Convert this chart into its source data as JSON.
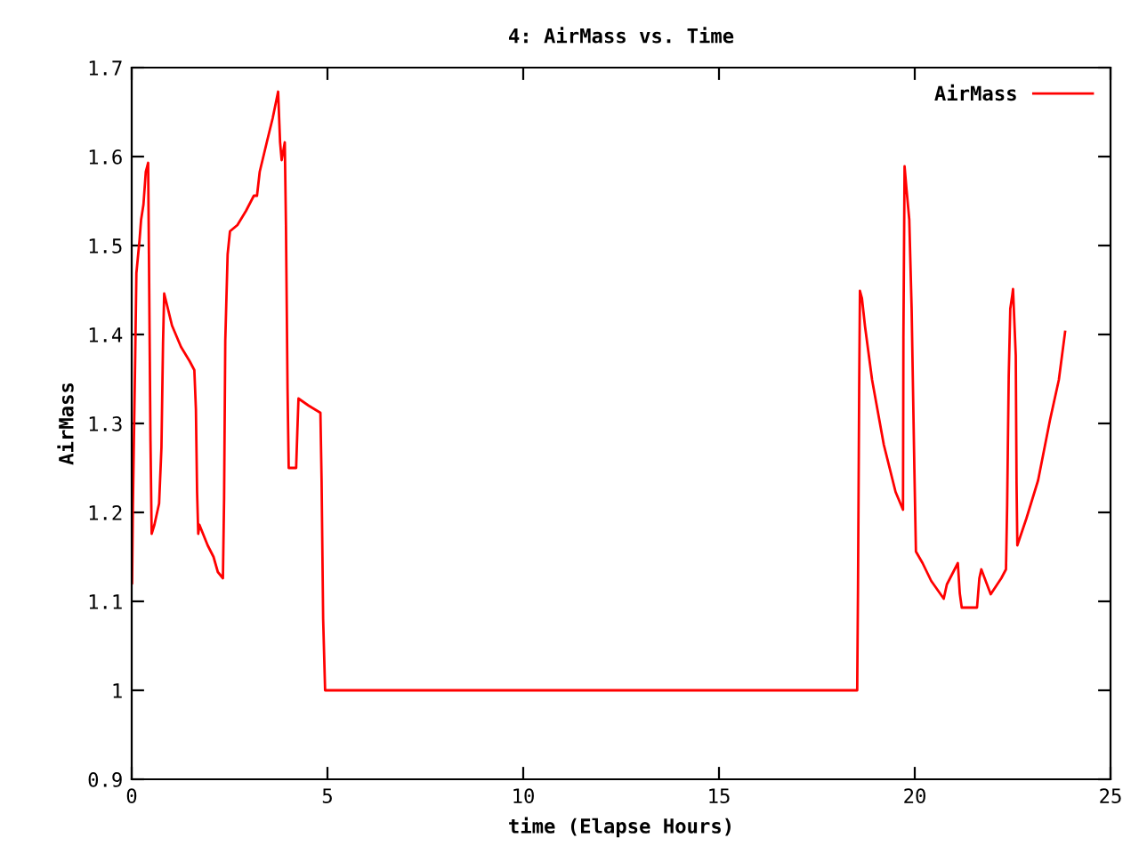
{
  "chart_data": {
    "type": "line",
    "title": "4: AirMass vs. Time",
    "xlabel": "time (Elapse Hours)",
    "ylabel": "AirMass",
    "xlim": [
      0,
      25
    ],
    "ylim": [
      0.9,
      1.7
    ],
    "xticks": [
      0,
      5,
      10,
      15,
      20,
      25
    ],
    "yticks": [
      0.9,
      1,
      1.1,
      1.2,
      1.3,
      1.4,
      1.5,
      1.6,
      1.7
    ],
    "grid": false,
    "legend": "top right",
    "marker": "none",
    "line_style": "solid",
    "series": [
      {
        "name": "AirMass",
        "color": "#ff0000",
        "x": [
          0,
          0.01,
          0.03,
          0.09,
          0.12,
          0.2,
          0.24,
          0.3,
          0.36,
          0.42,
          0.44,
          0.48,
          0.51,
          0.58,
          0.7,
          0.76,
          0.8,
          0.83,
          1.03,
          1.26,
          1.48,
          1.6,
          1.64,
          1.67,
          1.7,
          1.73,
          1.94,
          2.09,
          2.2,
          2.33,
          2.36,
          2.39,
          2.45,
          2.51,
          2.7,
          2.92,
          3.12,
          3.2,
          3.27,
          3.45,
          3.6,
          3.74,
          3.79,
          3.83,
          3.91,
          3.94,
          3.98,
          4.01,
          4.2,
          4.23,
          4.26,
          4.52,
          4.82,
          4.85,
          4.89,
          4.94,
          18.53,
          18.55,
          18.58,
          18.6,
          18.65,
          18.73,
          18.91,
          19.21,
          19.51,
          19.7,
          19.71,
          19.74,
          19.79,
          19.86,
          19.92,
          19.99,
          20.03,
          20.2,
          20.42,
          20.74,
          20.82,
          21.1,
          21.15,
          21.2,
          21.59,
          21.65,
          21.7,
          21.94,
          22.21,
          22.33,
          22.36,
          22.4,
          22.44,
          22.49,
          22.51,
          22.58,
          22.6,
          22.62,
          22.85,
          23.15,
          23.45,
          23.68,
          23.84
        ],
        "values": [
          1.12,
          1.12,
          1.206,
          1.376,
          1.469,
          1.506,
          1.529,
          1.546,
          1.583,
          1.593,
          1.49,
          1.28,
          1.176,
          1.186,
          1.21,
          1.273,
          1.39,
          1.446,
          1.41,
          1.386,
          1.37,
          1.36,
          1.316,
          1.223,
          1.176,
          1.186,
          1.163,
          1.15,
          1.133,
          1.126,
          1.216,
          1.393,
          1.49,
          1.516,
          1.523,
          1.539,
          1.556,
          1.556,
          1.583,
          1.616,
          1.643,
          1.673,
          1.616,
          1.596,
          1.616,
          1.523,
          1.34,
          1.25,
          1.25,
          1.29,
          1.328,
          1.32,
          1.312,
          1.236,
          1.08,
          1.0,
          1.0,
          1.113,
          1.336,
          1.449,
          1.441,
          1.409,
          1.349,
          1.276,
          1.223,
          1.203,
          1.396,
          1.589,
          1.563,
          1.529,
          1.429,
          1.249,
          1.156,
          1.143,
          1.123,
          1.103,
          1.119,
          1.143,
          1.109,
          1.093,
          1.093,
          1.126,
          1.136,
          1.108,
          1.126,
          1.136,
          1.209,
          1.353,
          1.429,
          1.444,
          1.451,
          1.376,
          1.233,
          1.163,
          1.193,
          1.236,
          1.303,
          1.349,
          1.403
        ]
      }
    ]
  }
}
